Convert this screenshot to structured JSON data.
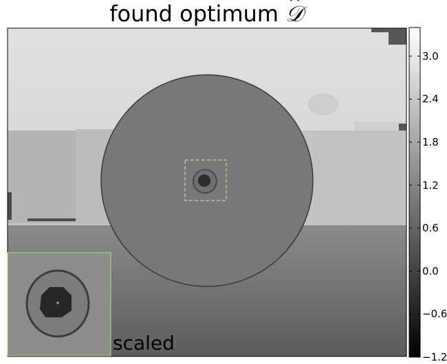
{
  "title": {
    "prefix": "found optimum ",
    "symbol": "𝒟"
  },
  "inset": {
    "label": "scaled"
  },
  "colorbar": {
    "ticks": [
      "3.0",
      "2.4",
      "1.8",
      "1.2",
      "0.6",
      "0.0",
      "−0.6",
      "−1.2"
    ],
    "range": [
      -1.2,
      3.4
    ],
    "colormap": "grayscale"
  },
  "colors": {
    "dashed_box": "#c8f0a0",
    "inset_border": "#a8e08a"
  }
}
